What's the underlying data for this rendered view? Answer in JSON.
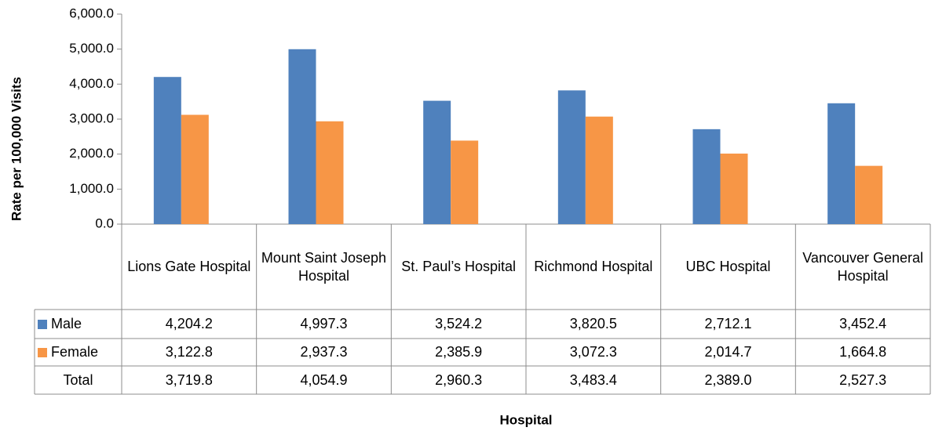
{
  "chart_data": {
    "type": "bar",
    "y_label": "Rate per 100,000 Visits",
    "x_label": "Hospital",
    "categories": [
      "Lions Gate Hospital",
      "Mount Saint Joseph Hospital",
      "St. Paul’s Hospital",
      "Richmond Hospital",
      "UBC Hospital",
      "Vancouver General Hospital"
    ],
    "series": [
      {
        "name": "Male",
        "color": "#4f81bd",
        "values": [
          4204.2,
          4997.3,
          3524.2,
          3820.5,
          2712.1,
          3452.4
        ],
        "value_labels": [
          "4,204.2",
          "4,997.3",
          "3,524.2",
          "3,820.5",
          "2,712.1",
          "3,452.4"
        ]
      },
      {
        "name": "Female",
        "color": "#f79646",
        "values": [
          3122.8,
          2937.3,
          2385.9,
          3072.3,
          2014.7,
          1664.8
        ],
        "value_labels": [
          "3,122.8",
          "2,937.3",
          "2,385.9",
          "3,072.3",
          "2,014.7",
          "1,664.8"
        ]
      }
    ],
    "total": {
      "name": "Total",
      "values": [
        3719.8,
        4054.9,
        2960.3,
        3483.4,
        2389.0,
        2527.3
      ],
      "value_labels": [
        "3,719.8",
        "4,054.9",
        "2,960.3",
        "3,483.4",
        "2,389.0",
        "2,527.3"
      ]
    },
    "ylim": [
      0,
      6000
    ],
    "yticks": [
      {
        "value": 0,
        "label": "0.0"
      },
      {
        "value": 1000,
        "label": "1,000.0"
      },
      {
        "value": 2000,
        "label": "2,000.0"
      },
      {
        "value": 3000,
        "label": "3,000.0"
      },
      {
        "value": 4000,
        "label": "4,000.0"
      },
      {
        "value": 5000,
        "label": "5,000.0"
      },
      {
        "value": 6000,
        "label": "6,000.0"
      }
    ],
    "grid": false
  }
}
